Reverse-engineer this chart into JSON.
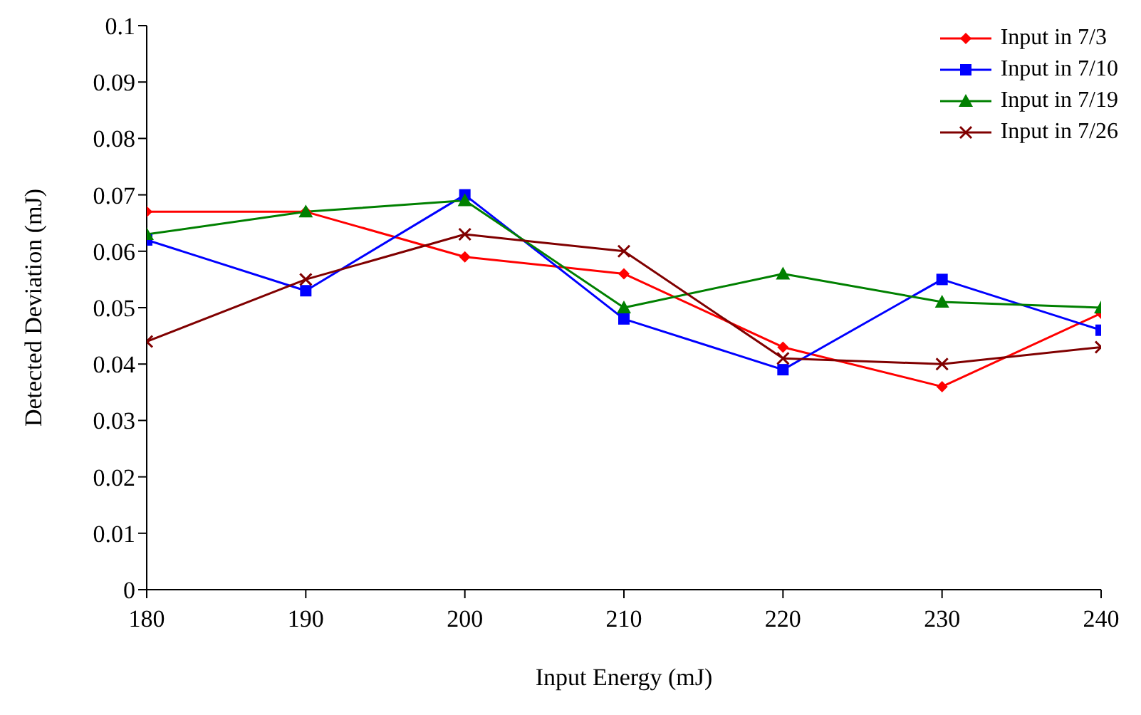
{
  "chart_data": {
    "type": "line",
    "xlabel": "Input Energy (mJ)",
    "ylabel": "Detected Deviation (mJ)",
    "x": [
      180,
      190,
      200,
      210,
      220,
      230,
      240
    ],
    "xlim": [
      180,
      240
    ],
    "xticks": [
      180,
      190,
      200,
      210,
      220,
      230,
      240
    ],
    "ylim": [
      0,
      0.1
    ],
    "yticks": [
      0,
      0.01,
      0.02,
      0.03,
      0.04,
      0.05,
      0.06,
      0.07,
      0.08,
      0.09,
      0.1
    ],
    "grid": false,
    "legend": "top right",
    "series": [
      {
        "name": "Input in 7/3",
        "color": "#ff0000",
        "marker": "diamond",
        "values": [
          0.067,
          0.067,
          0.059,
          0.056,
          0.043,
          0.036,
          0.049
        ]
      },
      {
        "name": "Input in 7/10",
        "color": "#0000ff",
        "marker": "square",
        "values": [
          0.062,
          0.053,
          0.07,
          0.048,
          0.039,
          0.055,
          0.046
        ]
      },
      {
        "name": "Input in 7/19",
        "color": "#008000",
        "marker": "triangle",
        "values": [
          0.063,
          0.067,
          0.069,
          0.05,
          0.056,
          0.051,
          0.05
        ]
      },
      {
        "name": "Input in 7/26",
        "color": "#800000",
        "marker": "cross",
        "values": [
          0.044,
          0.055,
          0.063,
          0.06,
          0.041,
          0.04,
          0.043
        ]
      }
    ]
  }
}
